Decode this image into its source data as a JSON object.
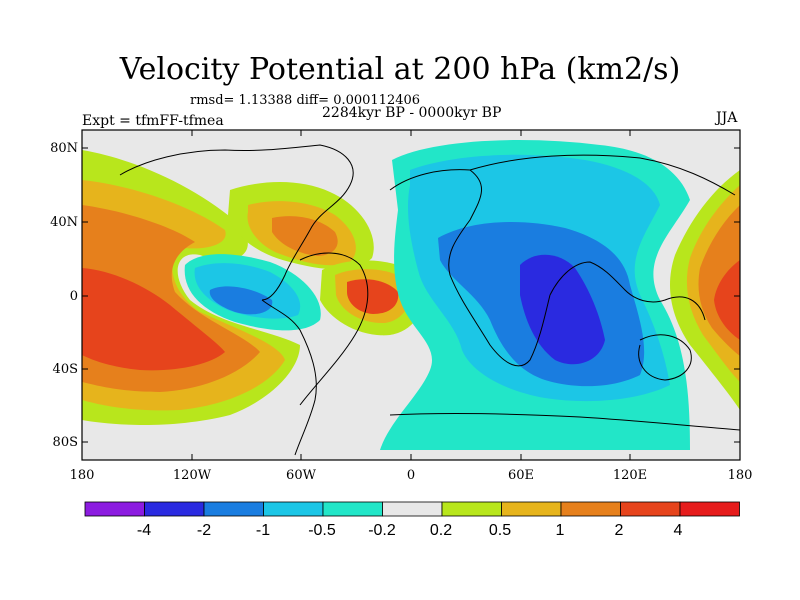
{
  "header": {
    "title": "Velocity Potential at 200 hPa (km2/s)",
    "stats": "rmsd= 1.13388 diff= 0.000112406",
    "experiment": "Expt = tfmFF-tfmea",
    "period": "2284kyr BP - 0000kyr BP",
    "season": "JJA"
  },
  "map": {
    "lat_labels": [
      "80N",
      "40N",
      "0",
      "40S",
      "80S"
    ],
    "lon_labels": [
      "180",
      "120W",
      "60W",
      "0",
      "60E",
      "120E",
      "180"
    ],
    "projection": "cylindrical-equidistant",
    "background": "#e8e8e8"
  },
  "colorbar": {
    "labels": [
      "-4",
      "-2",
      "-1",
      "-0.5",
      "-0.2",
      "0.2",
      "0.5",
      "1",
      "2",
      "4"
    ],
    "colors": [
      "#8c1ce0",
      "#2a2ae0",
      "#1a7de0",
      "#1cc6e6",
      "#22e6c8",
      "#e8e8e8",
      "#b8e61c",
      "#e6b41c",
      "#e6801c",
      "#e6441c",
      "#e61c1c"
    ]
  }
}
